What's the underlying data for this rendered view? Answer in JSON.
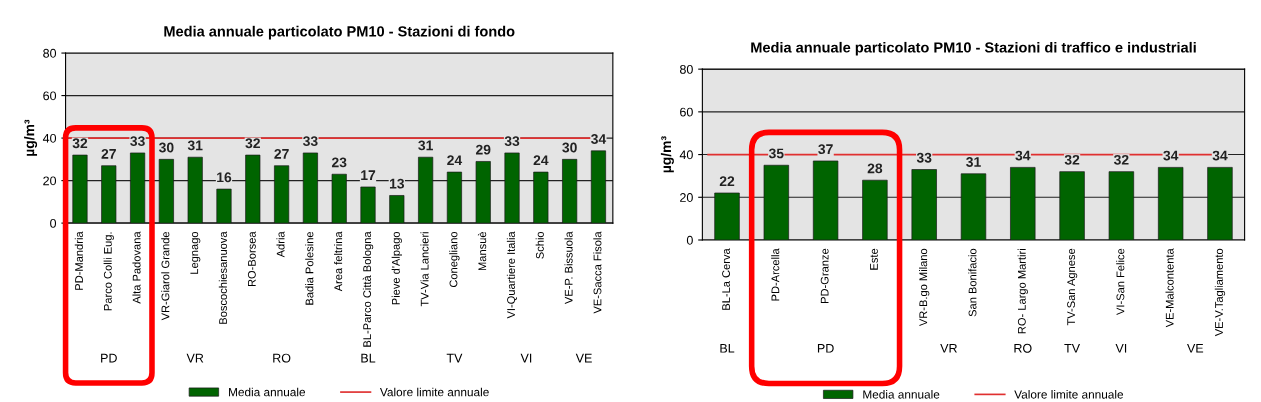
{
  "chart_data": [
    {
      "type": "bar",
      "title": "Media annuale particolato PM10 - Stazioni di fondo",
      "ylabel": "µg/m³",
      "categories": [
        "PD-Mandria",
        "Parco Colli Eug.",
        "Alta Padovana",
        "VR-Giarol Grande",
        "Legnago",
        "Boscochiesanuova",
        "RO-Borsea",
        "Adria",
        "Badia Polesine",
        "Area feltrina",
        "BL-Parco Città Bologna",
        "Pieve d'Alpago",
        "TV-Via Lancieri",
        "Conegliano",
        "Mansuè",
        "VI-Quartiere Italia",
        "Schio",
        "VE-P. Bissuola",
        "VE-Sacca Fisola"
      ],
      "series": [
        {
          "name": "Media annuale",
          "color": "#006400",
          "values": [
            32,
            27,
            33,
            30,
            31,
            16,
            32,
            27,
            33,
            23,
            17,
            13,
            31,
            24,
            29,
            33,
            24,
            30,
            34
          ]
        }
      ],
      "ylim": [
        0,
        80
      ],
      "yticks": [
        0,
        20,
        40,
        60,
        80
      ],
      "grid": "y",
      "data_labels": true,
      "legend": "bottom",
      "ref_lines": [
        {
          "axis": "y",
          "value": 40,
          "label": "Valore limite annuale",
          "color": "#e03030"
        }
      ],
      "annotations": [
        "PD",
        "VR",
        "RO",
        "BL",
        "TV",
        "VI",
        "VE"
      ]
    },
    {
      "type": "bar",
      "title": "Media annuale particolato PM10 - Stazioni di traffico e industriali",
      "ylabel": "µg/m³",
      "categories": [
        "BL-La Cerva",
        "PD-Arcella",
        "PD-Granze",
        "Este",
        "VR-B.go Milano",
        "San Bonifacio",
        "RO- Largo Martiri",
        "TV-San Agnese",
        "VI-San Felice",
        "VE-Malcontenta",
        "VE-V.Tagliamento"
      ],
      "series": [
        {
          "name": "Media annuale",
          "color": "#006400",
          "values": [
            22,
            35,
            37,
            28,
            33,
            31,
            34,
            32,
            32,
            34,
            34
          ]
        }
      ],
      "ylim": [
        0,
        80
      ],
      "yticks": [
        0,
        20,
        40,
        60,
        80
      ],
      "grid": "y",
      "data_labels": true,
      "legend": "bottom",
      "ref_lines": [
        {
          "axis": "y",
          "value": 40,
          "label": "Valore limite annuale",
          "color": "#e03030"
        }
      ],
      "annotations": [
        "BL",
        "PD",
        "VR",
        "RO",
        "TV",
        "VI",
        "VE"
      ]
    }
  ]
}
